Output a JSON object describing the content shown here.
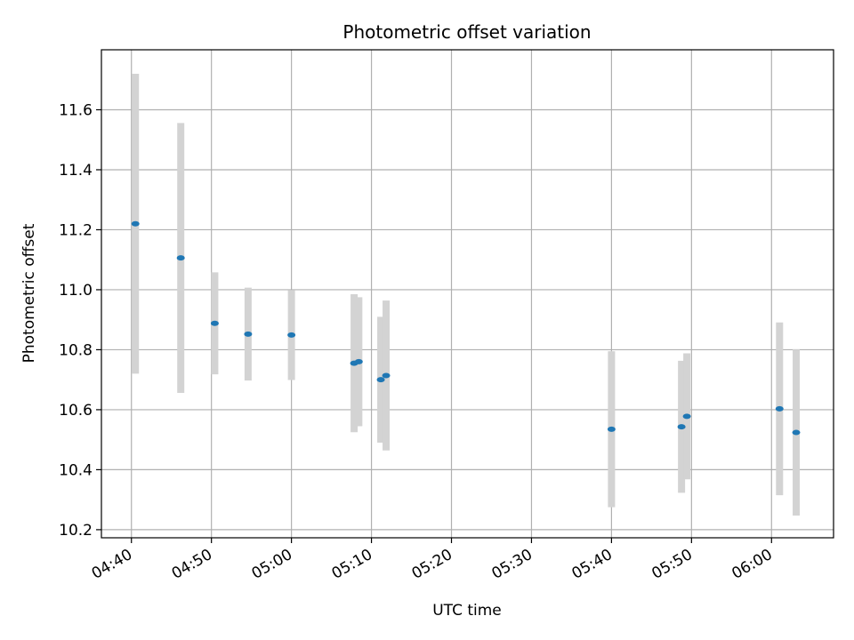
{
  "chart_data": {
    "type": "scatter",
    "title": "Photometric offset variation",
    "xlabel": "UTC time",
    "ylabel": "Photometric offset",
    "x_ticks": [
      "04:40",
      "04:50",
      "05:00",
      "05:10",
      "05:20",
      "05:30",
      "05:40",
      "05:50",
      "06:00"
    ],
    "y_ticks": [
      "10.2",
      "10.4",
      "10.6",
      "10.8",
      "11.0",
      "11.2",
      "11.4",
      "11.6"
    ],
    "xlim": [
      "04:36:15",
      "06:07:45"
    ],
    "ylim": [
      10.173,
      11.8
    ],
    "grid": true,
    "points": [
      {
        "time": "04:40:30",
        "value": 11.22,
        "err": 0.5
      },
      {
        "time": "04:46:10",
        "value": 11.106,
        "err": 0.45
      },
      {
        "time": "04:50:25",
        "value": 10.888,
        "err": 0.17
      },
      {
        "time": "04:54:35",
        "value": 10.852,
        "err": 0.155
      },
      {
        "time": "05:00:00",
        "value": 10.849,
        "err": 0.15
      },
      {
        "time": "05:07:50",
        "value": 10.755,
        "err": 0.23
      },
      {
        "time": "05:08:25",
        "value": 10.76,
        "err": 0.215
      },
      {
        "time": "05:11:10",
        "value": 10.7,
        "err": 0.21
      },
      {
        "time": "05:11:50",
        "value": 10.714,
        "err": 0.25
      },
      {
        "time": "05:40:00",
        "value": 10.535,
        "err": 0.26
      },
      {
        "time": "05:48:45",
        "value": 10.543,
        "err": 0.22
      },
      {
        "time": "05:49:25",
        "value": 10.578,
        "err": 0.21
      },
      {
        "time": "06:01:00",
        "value": 10.603,
        "err": 0.288
      },
      {
        "time": "06:03:05",
        "value": 10.524,
        "err": 0.277
      }
    ],
    "colors": {
      "marker": "#1f77b4",
      "errorbar": "#d3d3d3",
      "grid": "#b0b0b0"
    }
  }
}
